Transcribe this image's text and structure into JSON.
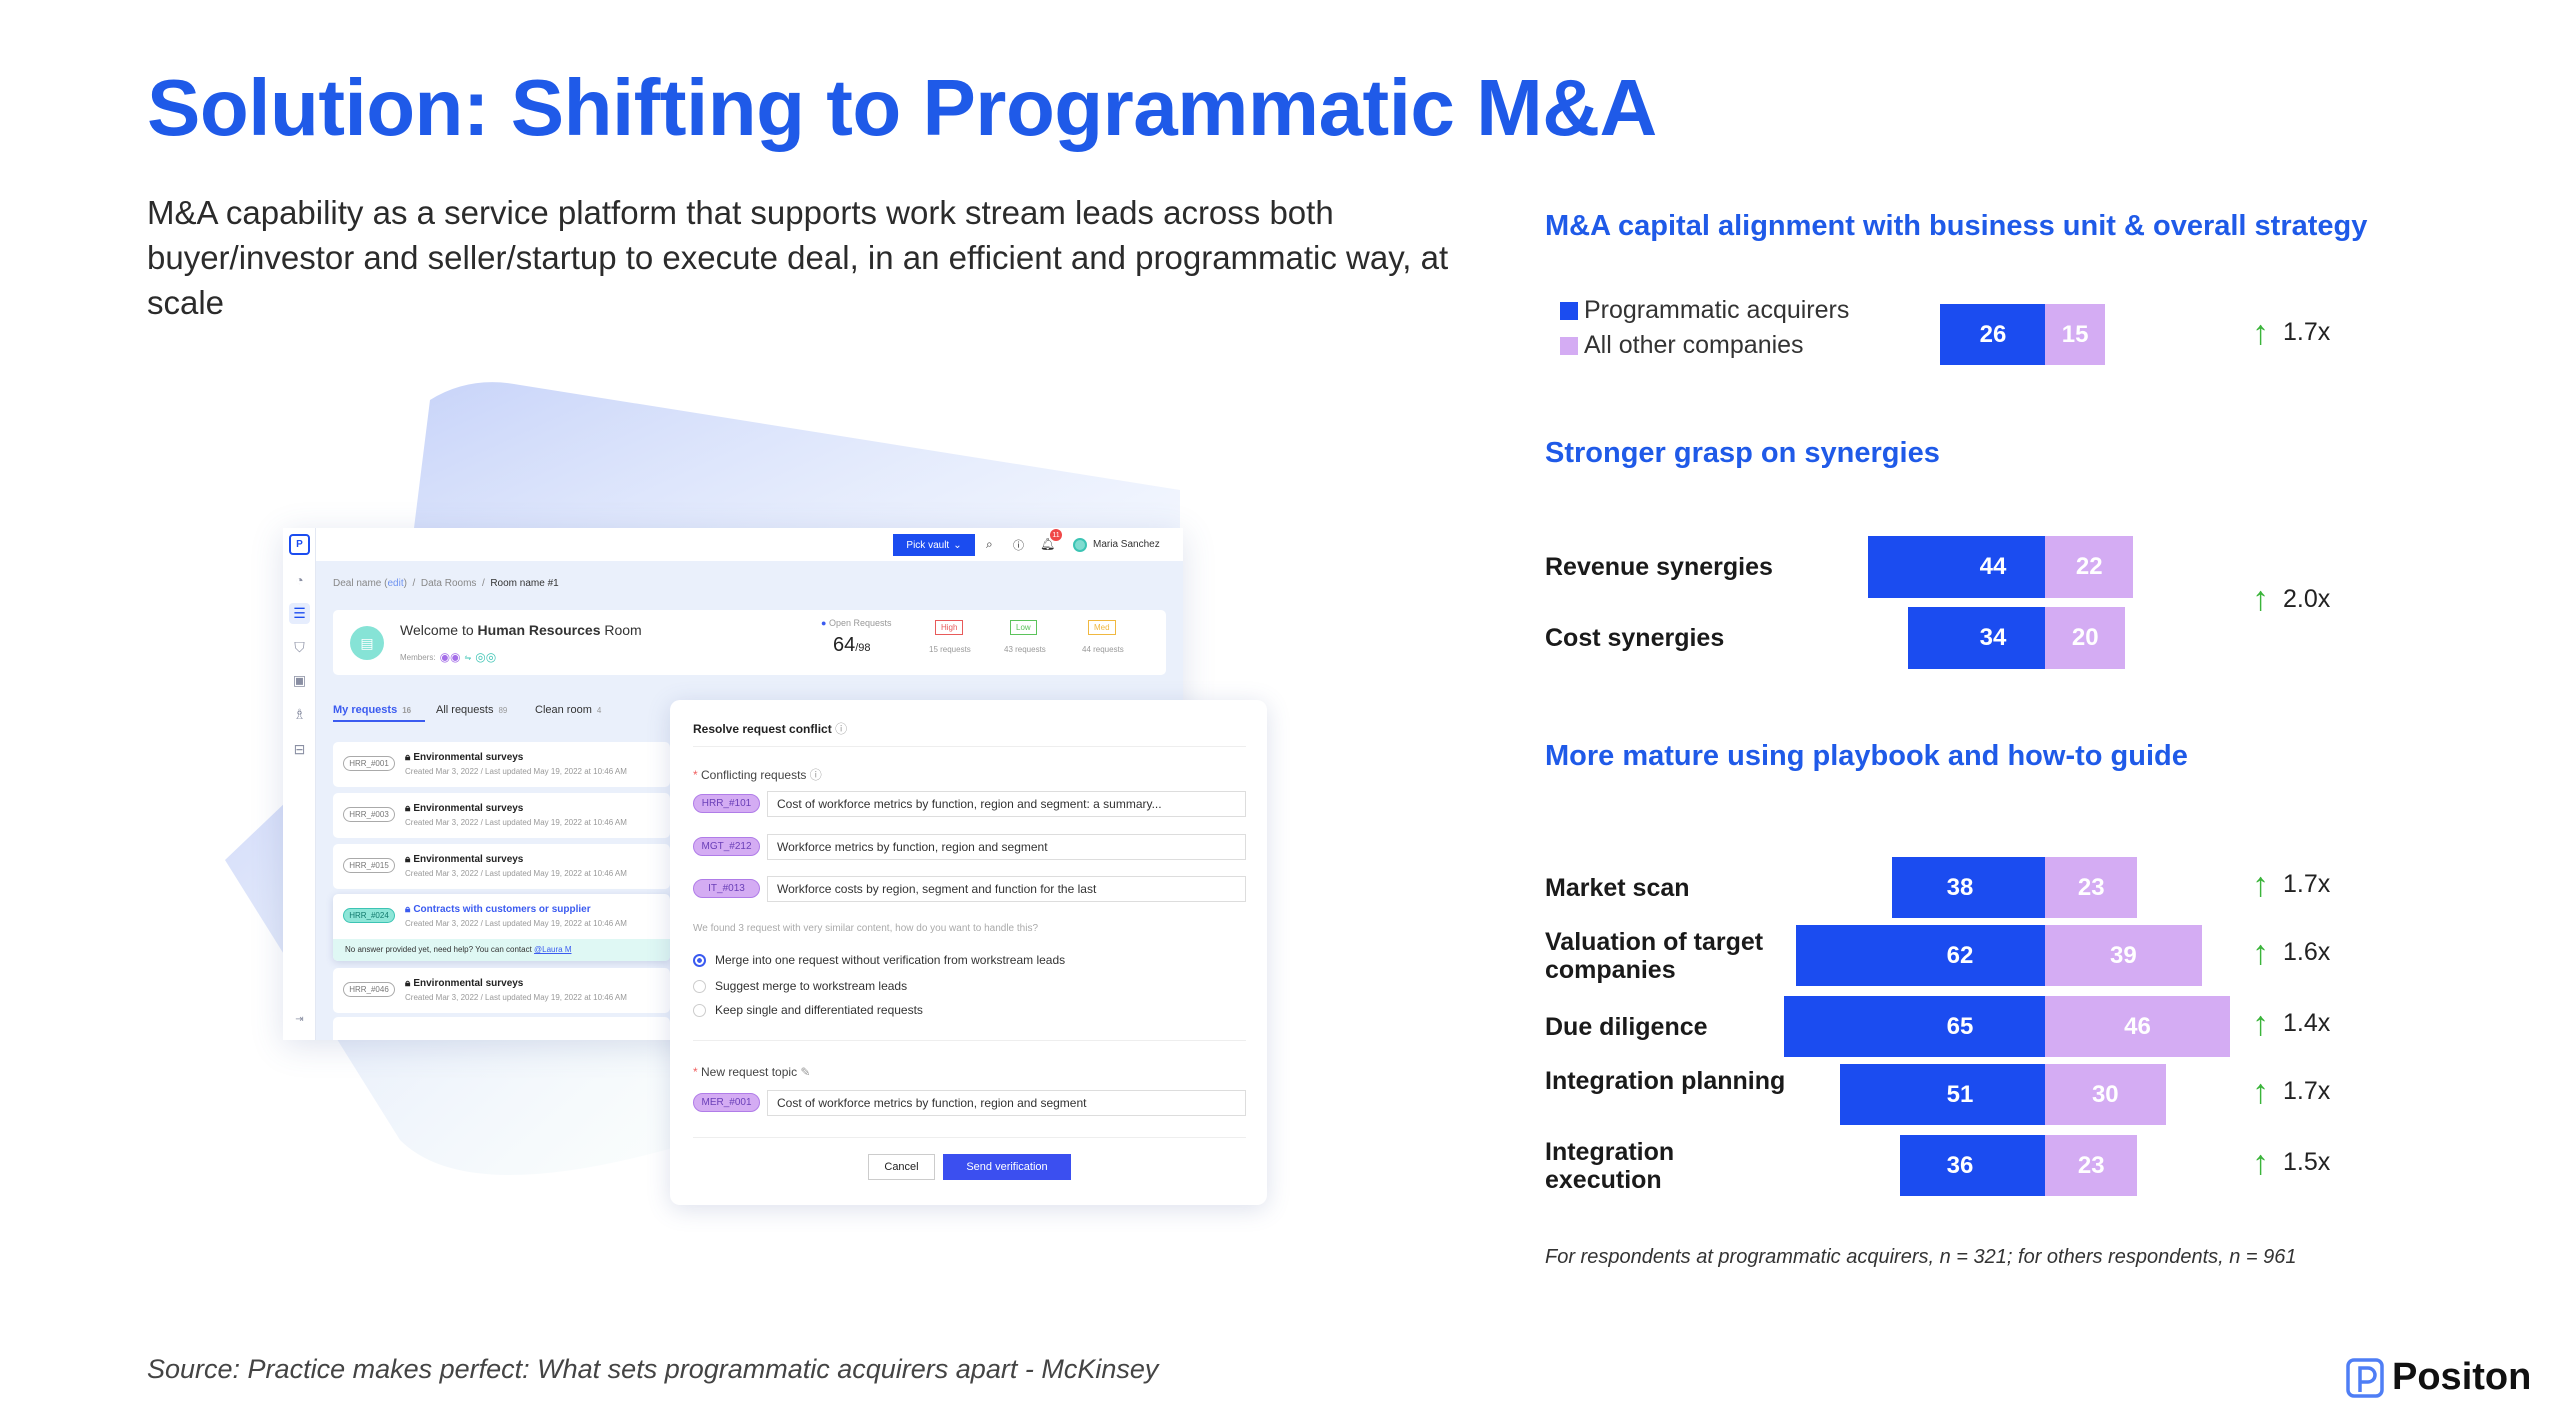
{
  "title": "Solution: Shifting to Programmatic M&A",
  "intro": "M&A capability as a service platform that supports work stream leads across both buyer/investor and seller/startup to execute deal, in an efficient and programmatic way, at scale",
  "colors": {
    "accent": "#1f5ae8",
    "programmatic": "#1b4cf0",
    "others": "#d4acf3",
    "up_arrow": "#3ab43a"
  },
  "chart_data": {
    "type": "bar",
    "orientation": "horizontal-diverging",
    "legend": [
      "Programmatic acquirers",
      "All other companies"
    ],
    "legend_placement": "top-left",
    "groups": [
      {
        "title": "M&A capital alignment with business unit & overall strategy",
        "rows": [
          {
            "label": "",
            "programmatic": 26,
            "others": 15
          }
        ],
        "multiplier": "1.7x"
      },
      {
        "title": "Stronger grasp on synergies",
        "rows": [
          {
            "label": "Revenue synergies",
            "programmatic": 44,
            "others": 22
          },
          {
            "label": "Cost synergies",
            "programmatic": 34,
            "others": 20
          }
        ],
        "multiplier": "2.0x"
      },
      {
        "title": "More mature using playbook and how-to guide",
        "rows": [
          {
            "label": "Market scan",
            "programmatic": 38,
            "others": 23,
            "multiplier": "1.7x"
          },
          {
            "label": "Valuation of target companies",
            "programmatic": 62,
            "others": 39,
            "multiplier": "1.6x"
          },
          {
            "label": "Due diligence",
            "programmatic": 65,
            "others": 46,
            "multiplier": "1.4x"
          },
          {
            "label": "Integration planning",
            "programmatic": 51,
            "others": 30,
            "multiplier": "1.7x"
          },
          {
            "label": "Integration execution",
            "programmatic": 36,
            "others": 23,
            "multiplier": "1.5x"
          }
        ]
      }
    ]
  },
  "footnote": "For respondents at programmatic acquirers, n = 321; for others respondents, n = 961",
  "source": "Source: Practice makes perfect: What sets programmatic acquirers apart - McKinsey",
  "logo": {
    "text": "Positon"
  },
  "mock": {
    "topbar": {
      "pick_vault": "Pick vault",
      "notifications": "11",
      "user": "Maria Sanchez"
    },
    "breadcrumb": {
      "deal": "Deal name (",
      "edit": "edit",
      "deal_end": ")",
      "sep": "/",
      "rooms": "Data Rooms",
      "room": "Room name #1"
    },
    "welcome": {
      "prefix": "Welcome to ",
      "room": "Human Resources",
      "suffix": " Room",
      "members_label": "Members:",
      "open_label": "Open Requests",
      "open": "64",
      "total": "/98",
      "badges": [
        {
          "label": "High",
          "count": "15 requests",
          "color": "#e85a5a"
        },
        {
          "label": "Low",
          "count": "43 requests",
          "color": "#5bc35b"
        },
        {
          "label": "Med",
          "count": "44 requests",
          "color": "#f0b840"
        }
      ]
    },
    "tabs": [
      {
        "label": "My requests",
        "count": "16"
      },
      {
        "label": "All requests",
        "count": "89"
      },
      {
        "label": "Clean room",
        "count": "4"
      }
    ],
    "requests": [
      {
        "id": "HRR_#001",
        "title": "Environmental surveys",
        "meta": "Created Mar 3, 2022 / Last updated May 19, 2022 at 10:46 AM"
      },
      {
        "id": "HRR_#003",
        "title": "Environmental surveys",
        "meta": "Created Mar 3, 2022 / Last updated May 19, 2022 at 10:46 AM"
      },
      {
        "id": "HRR_#015",
        "title": "Environmental surveys",
        "meta": "Created Mar 3, 2022 / Last updated May 19, 2022 at 10:46 AM"
      },
      {
        "id": "HRR_#024",
        "title": "Contracts with customers or supplier",
        "meta": "Created Mar 3, 2022 / Last updated May 19, 2022 at 10:46 AM",
        "help": "No answer provided yet, need help? You can contact ",
        "contact": "@Laura M"
      },
      {
        "id": "HRR_#046",
        "title": "Environmental surveys",
        "meta": "Created Mar 3, 2022 / Last updated May 19, 2022 at 10:46 AM"
      }
    ],
    "modal": {
      "title": "Resolve request conflict",
      "conflicting_label": "Conflicting requests",
      "conflicts": [
        {
          "id": "HRR_#101",
          "text": "Cost of workforce metrics by function, region and segment: a summary..."
        },
        {
          "id": "MGT_#212",
          "text": "Workforce metrics by function, region and segment"
        },
        {
          "id": "IT_#013",
          "text": "Workforce costs by region, segment and function for the last"
        }
      ],
      "hint": "We found 3 request with very similar content, how do you want to handle this?",
      "options": [
        "Merge into one request without verification from workstream leads",
        "Suggest merge to workstream leads",
        "Keep single and differentiated requests"
      ],
      "selected_option": 0,
      "new_topic_label": "New request topic",
      "new_topic": {
        "id": "MER_#001",
        "text": "Cost of workforce metrics by function, region and segment"
      },
      "cancel": "Cancel",
      "send": "Send verification"
    }
  }
}
